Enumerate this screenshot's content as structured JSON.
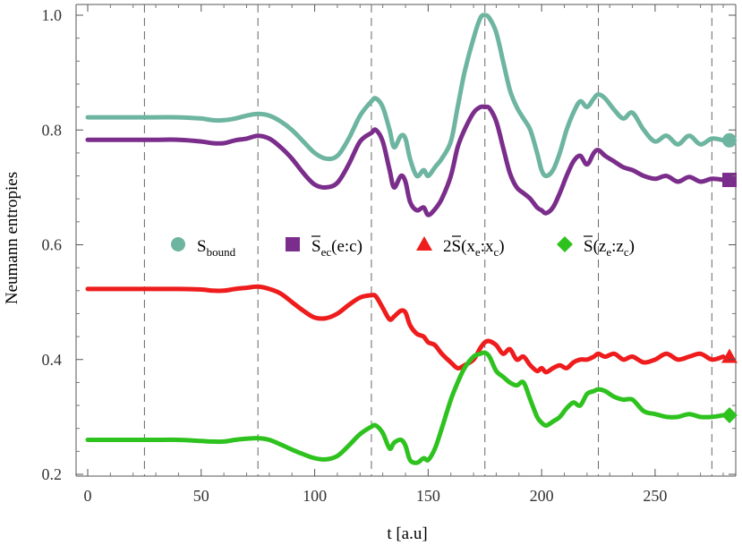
{
  "chart_data": {
    "type": "line",
    "xlabel": "t  [a.u]",
    "ylabel": "Neumann  entropies",
    "xlim": [
      -3,
      285
    ],
    "ylim": [
      0.2,
      1.02
    ],
    "xticks": [
      0,
      50,
      100,
      150,
      200,
      250
    ],
    "yticks": [
      0.2,
      0.4,
      0.6,
      0.8,
      1.0
    ],
    "xtick_labels": [
      "0",
      "50",
      "100",
      "150",
      "200",
      "250"
    ],
    "ytick_labels": [
      "0.2",
      "0.4",
      "0.6",
      "0.8",
      "1.0"
    ],
    "vlines": [
      25,
      75,
      125,
      175,
      225,
      275
    ],
    "grid": false,
    "legend_position": "center",
    "series": [
      {
        "name": "S_bound",
        "legend": {
          "main": "S",
          "sub": "bound",
          "tail": ""
        },
        "color": "#6db5a0",
        "marker": "circle",
        "x": [
          0,
          10,
          20,
          30,
          40,
          50,
          55,
          60,
          65,
          70,
          75,
          80,
          85,
          90,
          95,
          100,
          105,
          110,
          115,
          120,
          125,
          127,
          130,
          133,
          135,
          138,
          140,
          142,
          145,
          148,
          150,
          153,
          156,
          160,
          163,
          166,
          170,
          173,
          175,
          177,
          180,
          183,
          186,
          189,
          192,
          195,
          198,
          200,
          202,
          205,
          208,
          211,
          214,
          217,
          220,
          223,
          225,
          228,
          232,
          236,
          240,
          245,
          250,
          255,
          260,
          265,
          270,
          275,
          280
        ],
        "values": [
          0.822,
          0.822,
          0.822,
          0.822,
          0.822,
          0.82,
          0.817,
          0.817,
          0.82,
          0.825,
          0.828,
          0.825,
          0.815,
          0.8,
          0.78,
          0.76,
          0.75,
          0.755,
          0.785,
          0.825,
          0.85,
          0.855,
          0.84,
          0.8,
          0.77,
          0.79,
          0.785,
          0.75,
          0.72,
          0.73,
          0.72,
          0.735,
          0.75,
          0.78,
          0.84,
          0.9,
          0.96,
          0.995,
          1.0,
          0.995,
          0.97,
          0.92,
          0.87,
          0.84,
          0.82,
          0.8,
          0.76,
          0.73,
          0.72,
          0.73,
          0.76,
          0.8,
          0.83,
          0.85,
          0.84,
          0.855,
          0.862,
          0.855,
          0.835,
          0.82,
          0.83,
          0.8,
          0.78,
          0.79,
          0.775,
          0.79,
          0.775,
          0.785,
          0.782
        ]
      },
      {
        "name": "S̄_ec(e:c)",
        "legend": {
          "main": "S",
          "sub": "ec",
          "tail": "(e:c)"
        },
        "color": "#7b2d8b",
        "marker": "square",
        "x": [
          0,
          10,
          20,
          30,
          40,
          50,
          55,
          60,
          65,
          70,
          75,
          80,
          85,
          90,
          95,
          100,
          105,
          110,
          115,
          120,
          125,
          127,
          130,
          133,
          135,
          138,
          140,
          142,
          145,
          148,
          150,
          153,
          156,
          160,
          163,
          166,
          170,
          173,
          175,
          177,
          180,
          183,
          186,
          189,
          192,
          195,
          198,
          200,
          202,
          205,
          208,
          211,
          214,
          217,
          220,
          223,
          225,
          228,
          232,
          236,
          240,
          245,
          250,
          255,
          260,
          265,
          270,
          275,
          280
        ],
        "values": [
          0.783,
          0.783,
          0.783,
          0.783,
          0.783,
          0.78,
          0.777,
          0.777,
          0.782,
          0.785,
          0.79,
          0.785,
          0.77,
          0.75,
          0.725,
          0.705,
          0.7,
          0.708,
          0.74,
          0.78,
          0.795,
          0.8,
          0.78,
          0.73,
          0.7,
          0.72,
          0.71,
          0.675,
          0.66,
          0.665,
          0.652,
          0.662,
          0.68,
          0.72,
          0.77,
          0.8,
          0.83,
          0.84,
          0.84,
          0.838,
          0.815,
          0.77,
          0.725,
          0.7,
          0.69,
          0.68,
          0.665,
          0.66,
          0.655,
          0.665,
          0.69,
          0.72,
          0.745,
          0.755,
          0.74,
          0.76,
          0.765,
          0.755,
          0.745,
          0.735,
          0.73,
          0.72,
          0.715,
          0.72,
          0.71,
          0.718,
          0.71,
          0.715,
          0.713
        ]
      },
      {
        "name": "2S̄(x_e:x_c)",
        "legend": {
          "main": "2S",
          "sub": "",
          "tail": ""
        },
        "color": "#ee1c1c",
        "marker": "triangle",
        "x": [
          0,
          10,
          20,
          30,
          40,
          50,
          55,
          60,
          65,
          70,
          75,
          80,
          85,
          90,
          95,
          100,
          105,
          110,
          115,
          120,
          125,
          127,
          130,
          133,
          135,
          138,
          140,
          142,
          145,
          148,
          150,
          153,
          156,
          160,
          163,
          166,
          170,
          173,
          175,
          177,
          180,
          183,
          186,
          189,
          192,
          195,
          198,
          200,
          202,
          205,
          208,
          211,
          214,
          217,
          220,
          223,
          225,
          228,
          232,
          236,
          240,
          245,
          250,
          255,
          260,
          265,
          270,
          275,
          280
        ],
        "values": [
          0.523,
          0.523,
          0.523,
          0.523,
          0.523,
          0.522,
          0.52,
          0.52,
          0.523,
          0.525,
          0.527,
          0.523,
          0.515,
          0.5,
          0.485,
          0.473,
          0.472,
          0.48,
          0.495,
          0.508,
          0.512,
          0.51,
          0.49,
          0.47,
          0.475,
          0.485,
          0.482,
          0.46,
          0.445,
          0.44,
          0.43,
          0.425,
          0.41,
          0.395,
          0.385,
          0.39,
          0.4,
          0.42,
          0.43,
          0.432,
          0.425,
          0.41,
          0.418,
          0.4,
          0.405,
          0.39,
          0.38,
          0.385,
          0.378,
          0.385,
          0.39,
          0.385,
          0.395,
          0.4,
          0.4,
          0.405,
          0.41,
          0.405,
          0.41,
          0.4,
          0.405,
          0.395,
          0.4,
          0.41,
          0.4,
          0.405,
          0.41,
          0.4,
          0.405
        ]
      },
      {
        "name": "S̄(z_e:z_c)",
        "legend": {
          "main": "S",
          "sub": "",
          "tail": ""
        },
        "color": "#2ec21f",
        "marker": "diamond",
        "x": [
          0,
          10,
          20,
          30,
          40,
          50,
          55,
          60,
          65,
          70,
          75,
          80,
          85,
          90,
          95,
          100,
          105,
          110,
          115,
          120,
          125,
          127,
          130,
          133,
          135,
          138,
          140,
          142,
          145,
          148,
          150,
          153,
          156,
          160,
          163,
          166,
          170,
          173,
          175,
          177,
          180,
          183,
          186,
          189,
          192,
          195,
          198,
          200,
          202,
          205,
          208,
          211,
          214,
          217,
          220,
          223,
          225,
          228,
          232,
          236,
          240,
          245,
          250,
          255,
          260,
          265,
          270,
          275,
          280
        ],
        "values": [
          0.26,
          0.26,
          0.26,
          0.26,
          0.26,
          0.258,
          0.257,
          0.257,
          0.26,
          0.262,
          0.263,
          0.26,
          0.252,
          0.243,
          0.235,
          0.228,
          0.226,
          0.232,
          0.25,
          0.27,
          0.283,
          0.285,
          0.272,
          0.245,
          0.255,
          0.26,
          0.25,
          0.225,
          0.22,
          0.228,
          0.225,
          0.245,
          0.28,
          0.33,
          0.36,
          0.385,
          0.405,
          0.41,
          0.412,
          0.405,
          0.38,
          0.37,
          0.36,
          0.355,
          0.36,
          0.33,
          0.3,
          0.29,
          0.285,
          0.292,
          0.3,
          0.315,
          0.325,
          0.32,
          0.34,
          0.345,
          0.348,
          0.345,
          0.335,
          0.33,
          0.33,
          0.31,
          0.305,
          0.3,
          0.3,
          0.305,
          0.3,
          0.3,
          0.303
        ]
      }
    ]
  }
}
